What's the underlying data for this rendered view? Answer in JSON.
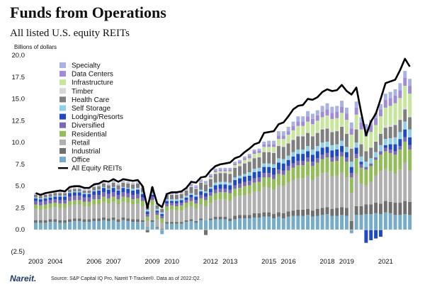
{
  "header": {
    "title": "Funds from Operations",
    "subtitle": "All listed U.S. equity REITs",
    "unit_label": "Billions of dollars"
  },
  "footer": {
    "logo": "Nareit.",
    "source": "Source: S&P Capital IQ Pro, Nareit T-Tracker®. Data as of 2022:Q2."
  },
  "chart_data": {
    "type": "bar",
    "stacked": true,
    "title": "Funds from Operations",
    "subtitle": "All listed U.S. equity REITs",
    "ylabel": "Billions of dollars",
    "xlabel": "",
    "ylim": [
      -2.5,
      20
    ],
    "y_ticks": [
      -2.5,
      0,
      2.5,
      5,
      7.5,
      10,
      12.5,
      15,
      17.5,
      20
    ],
    "y_tick_labels": [
      "(2.5)",
      "0.0",
      "2.5",
      "5.0",
      "7.5",
      "10.0",
      "12.5",
      "15.0",
      "17.5",
      "20.0"
    ],
    "x_tick_labels": [
      "2003",
      "2004",
      "2006",
      "2007",
      "2009",
      "2010",
      "2012",
      "2013",
      "2015",
      "2016",
      "2018",
      "2019",
      "2021"
    ],
    "period_start": "2003:Q1",
    "period_end": "2022:Q2",
    "legend_position": "top-left",
    "categories": [
      "2003:Q1",
      "2003:Q2",
      "2003:Q3",
      "2003:Q4",
      "2004:Q1",
      "2004:Q2",
      "2004:Q3",
      "2004:Q4",
      "2005:Q1",
      "2005:Q2",
      "2005:Q3",
      "2005:Q4",
      "2006:Q1",
      "2006:Q2",
      "2006:Q3",
      "2006:Q4",
      "2007:Q1",
      "2007:Q2",
      "2007:Q3",
      "2007:Q4",
      "2008:Q1",
      "2008:Q2",
      "2008:Q3",
      "2008:Q4",
      "2009:Q1",
      "2009:Q2",
      "2009:Q3",
      "2009:Q4",
      "2010:Q1",
      "2010:Q2",
      "2010:Q3",
      "2010:Q4",
      "2011:Q1",
      "2011:Q2",
      "2011:Q3",
      "2011:Q4",
      "2012:Q1",
      "2012:Q2",
      "2012:Q3",
      "2012:Q4",
      "2013:Q1",
      "2013:Q2",
      "2013:Q3",
      "2013:Q4",
      "2014:Q1",
      "2014:Q2",
      "2014:Q3",
      "2014:Q4",
      "2015:Q1",
      "2015:Q2",
      "2015:Q3",
      "2015:Q4",
      "2016:Q1",
      "2016:Q2",
      "2016:Q3",
      "2016:Q4",
      "2017:Q1",
      "2017:Q2",
      "2017:Q3",
      "2017:Q4",
      "2018:Q1",
      "2018:Q2",
      "2018:Q3",
      "2018:Q4",
      "2019:Q1",
      "2019:Q2",
      "2019:Q3",
      "2019:Q4",
      "2020:Q1",
      "2020:Q2",
      "2020:Q3",
      "2020:Q4",
      "2021:Q1",
      "2021:Q2",
      "2021:Q3",
      "2021:Q4",
      "2022:Q1",
      "2022:Q2"
    ],
    "total": [
      4.2,
      4.0,
      4.2,
      4.3,
      4.4,
      4.5,
      4.4,
      4.9,
      5.0,
      5.0,
      4.8,
      4.8,
      5.2,
      5.3,
      5.6,
      5.5,
      5.8,
      5.5,
      5.8,
      5.7,
      5.6,
      5.7,
      5.0,
      2.5,
      4.9,
      3.0,
      2.6,
      4.1,
      4.3,
      4.3,
      4.4,
      4.8,
      5.5,
      5.4,
      6.0,
      6.1,
      6.8,
      7.3,
      7.5,
      7.6,
      7.7,
      8.2,
      8.4,
      8.9,
      9.3,
      9.8,
      10.0,
      11.1,
      11.2,
      11.3,
      12.1,
      12.3,
      13.0,
      13.8,
      14.2,
      14.3,
      15.0,
      14.9,
      15.2,
      15.8,
      16.1,
      15.9,
      16.0,
      16.6,
      15.9,
      15.5,
      16.3,
      13.4,
      10.8,
      12.4,
      13.3,
      15.0,
      16.8,
      17.0,
      17.2,
      18.3,
      19.6,
      18.7
    ],
    "series": [
      {
        "name": "Specialty",
        "color": "#a9b3e3",
        "values": [
          0.1,
          0.1,
          0.1,
          0.1,
          0.1,
          0.1,
          0.1,
          0.1,
          0.1,
          0.1,
          0.1,
          0.1,
          0.1,
          0.1,
          0.1,
          0.1,
          0.1,
          0.1,
          0.1,
          0.1,
          0.1,
          0.1,
          0.1,
          0.1,
          0.1,
          0.1,
          0.1,
          0.1,
          0.1,
          0.1,
          0.1,
          0.1,
          0.2,
          0.2,
          0.2,
          0.2,
          0.2,
          0.2,
          0.2,
          0.2,
          0.2,
          0.2,
          0.2,
          0.2,
          0.2,
          0.2,
          0.2,
          0.3,
          0.4,
          0.4,
          0.5,
          0.5,
          0.5,
          0.5,
          0.6,
          0.6,
          0.6,
          0.6,
          0.6,
          0.7,
          0.7,
          0.7,
          0.7,
          0.7,
          0.7,
          0.7,
          0.7,
          0.6,
          0.6,
          0.6,
          0.6,
          0.6,
          0.7,
          0.7,
          0.7,
          0.8,
          0.8,
          0.8
        ]
      },
      {
        "name": "Data Centers",
        "color": "#a18ad6",
        "values": [
          0.0,
          0.0,
          0.0,
          0.0,
          0.0,
          0.0,
          0.0,
          0.0,
          0.0,
          0.0,
          0.0,
          0.0,
          0.0,
          0.0,
          0.0,
          0.0,
          0.0,
          0.0,
          0.0,
          0.0,
          0.0,
          0.0,
          0.0,
          0.0,
          0.0,
          0.0,
          0.0,
          0.0,
          0.1,
          0.1,
          0.1,
          0.1,
          0.1,
          0.1,
          0.1,
          0.1,
          0.2,
          0.2,
          0.2,
          0.2,
          0.2,
          0.2,
          0.2,
          0.2,
          0.3,
          0.3,
          0.3,
          0.3,
          0.3,
          0.3,
          0.4,
          0.4,
          0.4,
          0.5,
          0.5,
          0.5,
          0.6,
          0.6,
          0.6,
          0.6,
          0.7,
          0.7,
          0.7,
          0.7,
          0.7,
          0.7,
          0.8,
          0.8,
          0.8,
          0.8,
          0.8,
          0.8,
          0.9,
          0.9,
          0.9,
          0.9,
          0.9,
          0.9
        ]
      },
      {
        "name": "Infrastructure",
        "color": "#c6e79a",
        "values": [
          0.0,
          0.0,
          0.0,
          0.0,
          0.0,
          0.0,
          0.0,
          0.0,
          0.0,
          0.0,
          0.0,
          0.0,
          0.0,
          0.0,
          0.0,
          0.0,
          0.0,
          0.0,
          0.0,
          0.0,
          0.0,
          0.0,
          0.0,
          0.0,
          0.0,
          0.0,
          0.0,
          0.0,
          0.0,
          0.0,
          0.0,
          0.0,
          0.0,
          0.0,
          0.0,
          0.0,
          0.1,
          0.1,
          0.1,
          0.1,
          0.2,
          0.2,
          0.2,
          0.3,
          0.3,
          0.4,
          0.4,
          0.5,
          0.5,
          0.6,
          0.7,
          0.8,
          0.9,
          1.0,
          1.1,
          1.1,
          1.2,
          1.3,
          1.3,
          1.3,
          1.4,
          1.4,
          1.4,
          1.5,
          1.5,
          1.5,
          1.6,
          1.6,
          1.6,
          1.7,
          1.8,
          1.9,
          2.1,
          2.2,
          2.3,
          2.3,
          2.5,
          2.5
        ]
      },
      {
        "name": "Timber",
        "color": "#d7d7d7",
        "values": [
          0.1,
          0.1,
          0.1,
          0.1,
          0.1,
          0.1,
          0.1,
          0.1,
          0.1,
          0.1,
          0.1,
          0.1,
          0.1,
          0.1,
          0.1,
          0.1,
          0.1,
          0.1,
          0.1,
          0.1,
          0.1,
          0.1,
          0.1,
          0.1,
          0.1,
          0.1,
          0.1,
          0.1,
          0.1,
          0.1,
          0.1,
          0.1,
          0.1,
          0.1,
          0.1,
          0.1,
          0.1,
          0.1,
          0.1,
          0.1,
          0.1,
          0.1,
          0.1,
          0.1,
          0.1,
          0.1,
          0.1,
          0.1,
          0.1,
          0.1,
          0.1,
          0.1,
          0.1,
          0.1,
          0.1,
          0.1,
          0.1,
          0.1,
          0.1,
          0.1,
          0.1,
          0.1,
          0.1,
          0.1,
          0.1,
          0.1,
          0.1,
          0.1,
          0.1,
          0.1,
          0.1,
          0.1,
          0.2,
          0.2,
          0.2,
          0.2,
          0.2,
          0.2
        ]
      },
      {
        "name": "Health Care",
        "color": "#7f7f7f",
        "values": [
          0.3,
          0.3,
          0.3,
          0.3,
          0.3,
          0.3,
          0.3,
          0.3,
          0.3,
          0.3,
          0.3,
          0.3,
          0.4,
          0.4,
          0.4,
          0.4,
          0.5,
          0.5,
          0.5,
          0.5,
          0.5,
          0.5,
          0.5,
          0.4,
          0.5,
          0.4,
          0.4,
          0.5,
          0.5,
          0.5,
          0.5,
          0.6,
          0.7,
          0.7,
          0.8,
          0.8,
          0.9,
          1.0,
          1.0,
          1.0,
          1.0,
          1.1,
          1.1,
          1.2,
          1.2,
          1.2,
          1.2,
          1.3,
          1.3,
          1.3,
          1.4,
          1.4,
          1.4,
          1.4,
          1.5,
          1.5,
          1.5,
          1.5,
          1.5,
          1.5,
          1.5,
          1.5,
          1.5,
          1.6,
          1.5,
          1.5,
          1.5,
          1.4,
          1.2,
          1.2,
          1.2,
          1.3,
          1.3,
          1.3,
          1.4,
          1.4,
          1.4,
          1.4
        ]
      },
      {
        "name": "Self Storage",
        "color": "#8fd0e6",
        "values": [
          0.1,
          0.1,
          0.1,
          0.1,
          0.1,
          0.1,
          0.1,
          0.1,
          0.1,
          0.1,
          0.1,
          0.1,
          0.1,
          0.1,
          0.1,
          0.1,
          0.1,
          0.1,
          0.1,
          0.1,
          0.2,
          0.2,
          0.2,
          0.2,
          0.2,
          0.2,
          0.2,
          0.2,
          0.2,
          0.2,
          0.2,
          0.2,
          0.2,
          0.2,
          0.2,
          0.2,
          0.2,
          0.3,
          0.3,
          0.3,
          0.3,
          0.3,
          0.3,
          0.3,
          0.4,
          0.4,
          0.4,
          0.4,
          0.4,
          0.4,
          0.5,
          0.5,
          0.5,
          0.5,
          0.5,
          0.5,
          0.6,
          0.6,
          0.6,
          0.6,
          0.6,
          0.6,
          0.6,
          0.6,
          0.6,
          0.6,
          0.6,
          0.6,
          0.6,
          0.6,
          0.6,
          0.7,
          0.7,
          0.7,
          0.8,
          0.8,
          0.9,
          0.9
        ]
      },
      {
        "name": "Lodging/Resorts",
        "color": "#1f48c4",
        "values": [
          0.3,
          0.3,
          0.3,
          0.3,
          0.3,
          0.4,
          0.4,
          0.4,
          0.4,
          0.4,
          0.4,
          0.4,
          0.4,
          0.5,
          0.5,
          0.5,
          0.5,
          0.5,
          0.5,
          0.5,
          0.5,
          0.5,
          0.4,
          0.3,
          0.2,
          0.2,
          0.2,
          0.3,
          0.2,
          0.3,
          0.3,
          0.3,
          0.3,
          0.4,
          0.4,
          0.4,
          0.4,
          0.5,
          0.5,
          0.5,
          0.5,
          0.6,
          0.6,
          0.6,
          0.6,
          0.7,
          0.7,
          0.7,
          0.7,
          0.8,
          0.8,
          0.8,
          0.7,
          0.8,
          0.8,
          0.8,
          0.7,
          0.8,
          0.8,
          0.8,
          0.7,
          0.8,
          0.8,
          0.7,
          0.6,
          0.7,
          0.7,
          0.3,
          -1.5,
          -1.2,
          -1.0,
          -0.8,
          0.3,
          0.6,
          0.8,
          0.8,
          0.9,
          0.9
        ]
      },
      {
        "name": "Diversified",
        "color": "#7b68b8",
        "values": [
          0.4,
          0.4,
          0.4,
          0.4,
          0.4,
          0.4,
          0.4,
          0.5,
          0.5,
          0.5,
          0.5,
          0.5,
          0.5,
          0.5,
          0.5,
          0.5,
          0.5,
          0.5,
          0.5,
          0.5,
          0.5,
          0.5,
          0.4,
          0.3,
          0.4,
          0.3,
          0.3,
          0.3,
          0.3,
          0.3,
          0.3,
          0.3,
          0.4,
          0.4,
          0.4,
          0.4,
          0.4,
          0.4,
          0.4,
          0.4,
          0.4,
          0.4,
          0.5,
          0.5,
          0.5,
          0.5,
          0.5,
          0.5,
          0.5,
          0.5,
          0.5,
          0.5,
          0.5,
          0.5,
          0.5,
          0.5,
          0.5,
          0.5,
          0.5,
          0.5,
          0.5,
          0.5,
          0.5,
          0.5,
          0.5,
          0.5,
          0.5,
          0.4,
          0.3,
          0.3,
          0.3,
          0.4,
          0.4,
          0.4,
          0.4,
          0.4,
          0.5,
          0.5
        ]
      },
      {
        "name": "Residential",
        "color": "#92bd59",
        "values": [
          0.5,
          0.5,
          0.5,
          0.5,
          0.5,
          0.5,
          0.5,
          0.5,
          0.5,
          0.5,
          0.5,
          0.5,
          0.6,
          0.6,
          0.6,
          0.6,
          0.6,
          0.6,
          0.6,
          0.6,
          0.6,
          0.6,
          0.6,
          0.5,
          0.6,
          0.5,
          0.5,
          0.5,
          0.5,
          0.5,
          0.6,
          0.6,
          0.6,
          0.6,
          0.7,
          0.7,
          0.8,
          0.8,
          0.8,
          0.8,
          0.9,
          0.9,
          0.9,
          1.0,
          1.0,
          1.0,
          1.1,
          1.1,
          1.2,
          1.2,
          1.3,
          1.3,
          1.4,
          1.4,
          1.5,
          1.5,
          1.6,
          1.6,
          1.6,
          1.6,
          1.7,
          1.7,
          1.7,
          1.8,
          1.8,
          1.8,
          1.8,
          1.8,
          1.8,
          1.8,
          1.8,
          1.9,
          2.0,
          2.1,
          2.2,
          2.3,
          2.4,
          2.4
        ]
      },
      {
        "name": "Retail",
        "color": "#b0b0b0",
        "values": [
          1.3,
          1.2,
          1.3,
          1.3,
          1.4,
          1.4,
          1.4,
          1.6,
          1.6,
          1.6,
          1.5,
          1.5,
          1.6,
          1.6,
          1.8,
          1.7,
          1.8,
          1.7,
          1.8,
          1.8,
          1.7,
          1.8,
          1.6,
          0.7,
          1.7,
          0.9,
          0.7,
          1.3,
          1.4,
          1.3,
          1.3,
          1.4,
          1.5,
          1.4,
          1.6,
          1.6,
          1.8,
          1.9,
          2.0,
          2.0,
          2.0,
          2.2,
          2.2,
          2.3,
          2.4,
          2.5,
          2.5,
          2.9,
          2.8,
          2.8,
          3.1,
          3.1,
          3.3,
          3.5,
          3.6,
          3.6,
          3.8,
          3.5,
          3.7,
          4.0,
          4.0,
          3.7,
          3.7,
          4.0,
          3.5,
          3.2,
          3.7,
          2.6,
          2.2,
          2.6,
          3.1,
          3.7,
          3.7,
          3.5,
          3.3,
          3.8,
          4.4,
          3.6
        ]
      },
      {
        "name": "Industrial",
        "color": "#6f6f6f",
        "values": [
          0.3,
          0.3,
          0.3,
          0.3,
          0.3,
          0.3,
          0.3,
          0.3,
          0.3,
          0.3,
          0.3,
          0.3,
          0.3,
          0.3,
          0.3,
          0.3,
          0.3,
          0.3,
          0.3,
          0.3,
          0.3,
          0.3,
          0.2,
          -0.3,
          0.2,
          0.1,
          0.1,
          0.2,
          0.2,
          0.2,
          0.2,
          0.2,
          0.2,
          0.2,
          0.2,
          -0.6,
          0.2,
          0.3,
          0.3,
          0.3,
          0.3,
          0.4,
          0.4,
          0.4,
          0.4,
          0.5,
          0.5,
          0.5,
          0.5,
          0.5,
          0.5,
          0.6,
          0.6,
          0.6,
          0.7,
          0.7,
          0.7,
          0.7,
          0.8,
          0.8,
          0.8,
          0.8,
          0.9,
          0.9,
          0.9,
          1.0,
          1.0,
          1.0,
          1.1,
          1.1,
          1.2,
          1.2,
          1.3,
          1.3,
          1.4,
          1.4,
          1.5,
          1.5
        ]
      },
      {
        "name": "Office",
        "color": "#76acca",
        "values": [
          0.8,
          0.8,
          0.8,
          0.9,
          0.9,
          0.8,
          0.8,
          0.9,
          1.0,
          1.0,
          0.9,
          0.9,
          1.0,
          1.0,
          1.1,
          1.0,
          1.1,
          0.9,
          1.1,
          1.0,
          0.9,
          0.9,
          0.9,
          0.3,
          0.9,
          0.2,
          -0.5,
          0.7,
          0.7,
          0.7,
          0.7,
          0.9,
          1.0,
          0.8,
          1.1,
          1.1,
          1.1,
          1.2,
          1.2,
          1.2,
          1.0,
          1.2,
          1.3,
          1.3,
          1.3,
          1.4,
          1.4,
          1.5,
          1.5,
          1.3,
          1.5,
          1.3,
          1.5,
          1.6,
          1.6,
          1.6,
          1.7,
          1.5,
          1.6,
          1.7,
          1.8,
          1.6,
          1.6,
          1.7,
          1.6,
          -0.4,
          1.7,
          1.7,
          1.8,
          1.8,
          1.9,
          1.8,
          2.0,
          1.9,
          1.7,
          1.7,
          1.8,
          1.7
        ]
      }
    ],
    "line_series": {
      "name": "All Equity REITs",
      "color": "#000000"
    }
  }
}
